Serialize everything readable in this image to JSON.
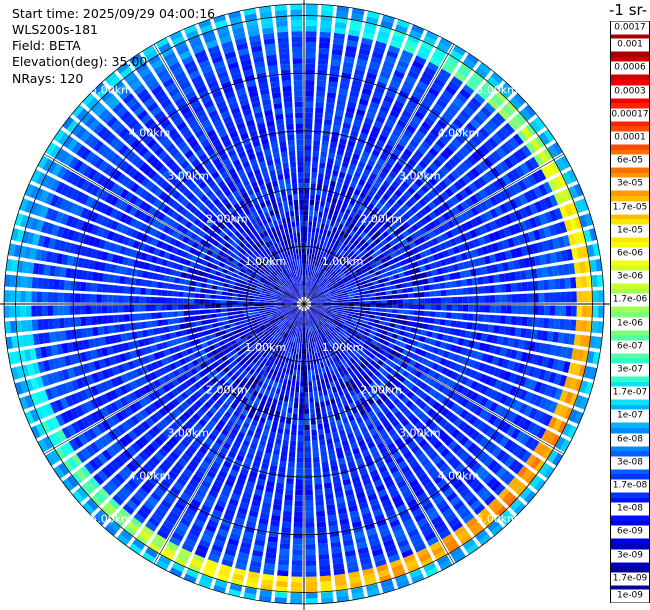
{
  "info": {
    "start_time": "Start time: 2025/09/29 04:00:16",
    "instrument": "WLS200s-181",
    "field": "Field: BETA",
    "elevation": "Elevation(deg): 35.00",
    "nrays": "NRays: 120"
  },
  "colorbar": {
    "title": "-1 sr-",
    "labels": [
      "0.0017",
      "0.001",
      "0.0006",
      "0.0003",
      "0.00017",
      "0.0001",
      "6e-05",
      "3e-05",
      "1.7e-05",
      "1e-05",
      "6e-06",
      "3e-06",
      "1.7e-06",
      "1e-06",
      "6e-07",
      "3e-07",
      "1.7e-07",
      "1e-07",
      "6e-08",
      "3e-08",
      "1.7e-08",
      "1e-08",
      "6e-09",
      "3e-09",
      "1.7e-09",
      "1e-09"
    ],
    "colors": [
      "#7f0000",
      "#a80000",
      "#d00000",
      "#f40000",
      "#ff2200",
      "#ff4a00",
      "#ff7000",
      "#ff9900",
      "#ffbf00",
      "#ffe600",
      "#f2ff0d",
      "#cbff2b",
      "#a4ff53",
      "#7dff7a",
      "#56ffa1",
      "#2fffc8",
      "#0ce4f5",
      "#00b4ff",
      "#0089ff",
      "#0060ff",
      "#0034ff",
      "#0010ff",
      "#0000e8",
      "#0000c1",
      "#00009a",
      "#000080"
    ]
  },
  "chart_data": {
    "type": "heatmap",
    "projection": "polar (PPI scan)",
    "field": "BETA",
    "elevation_deg": 35.0,
    "n_rays": 120,
    "range_rings_km": [
      1,
      2,
      3,
      4,
      5
    ],
    "ring_labels": [
      "1.00km",
      "2.00km",
      "3.00km",
      "4.00km",
      "5.00km"
    ],
    "max_range_km": 5.2,
    "colorscale": "jet, log10(beta)",
    "color_range": [
      1e-09,
      0.0017
    ],
    "background_beta": 1.7e-08,
    "enhanced_layer": {
      "range_km": [
        4.75,
        5.05
      ],
      "peak_beta": 6e-05,
      "strongest_sector": "south-east"
    }
  }
}
